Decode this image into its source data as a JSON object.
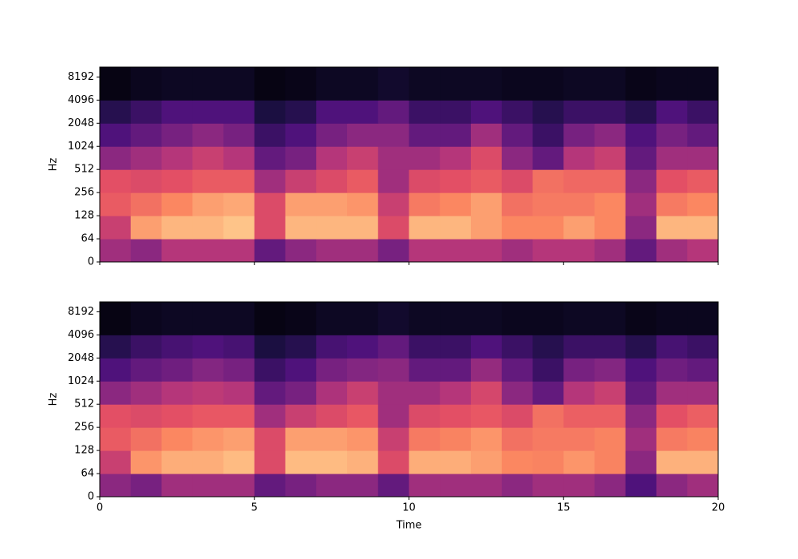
{
  "chart_data": [
    {
      "type": "spectrogram",
      "ylabel": "Hz",
      "colormap": "magma",
      "yscale": "symlog",
      "linthresh": 64,
      "xlim": [
        0,
        20
      ],
      "xticks": [
        0,
        5,
        10,
        15,
        20
      ],
      "show_xticklabels": false,
      "ylim": [
        0,
        11025
      ],
      "yticks": [
        0,
        64,
        128,
        256,
        512,
        1024,
        2048,
        4096,
        8192
      ],
      "time_bins": [
        0,
        1,
        2,
        3,
        4,
        5,
        6,
        7,
        8,
        9,
        10,
        11,
        12,
        13,
        14,
        15,
        16,
        17,
        18,
        19,
        20
      ],
      "freq_bins": [
        0,
        64,
        128,
        256,
        512,
        1024,
        2048,
        4096,
        11025
      ],
      "values": [
        [
          0.45,
          0.4,
          0.5,
          0.5,
          0.5,
          0.3,
          0.4,
          0.45,
          0.45,
          0.35,
          0.5,
          0.5,
          0.5,
          0.45,
          0.5,
          0.5,
          0.45,
          0.3,
          0.45,
          0.5
        ],
        [
          0.55,
          0.8,
          0.85,
          0.85,
          0.88,
          0.6,
          0.85,
          0.85,
          0.85,
          0.6,
          0.85,
          0.85,
          0.8,
          0.75,
          0.75,
          0.8,
          0.75,
          0.4,
          0.85,
          0.85
        ],
        [
          0.65,
          0.7,
          0.75,
          0.8,
          0.82,
          0.6,
          0.8,
          0.8,
          0.78,
          0.55,
          0.72,
          0.75,
          0.8,
          0.7,
          0.72,
          0.72,
          0.75,
          0.45,
          0.72,
          0.75
        ],
        [
          0.62,
          0.6,
          0.62,
          0.65,
          0.65,
          0.45,
          0.55,
          0.6,
          0.65,
          0.45,
          0.6,
          0.62,
          0.65,
          0.6,
          0.7,
          0.68,
          0.68,
          0.4,
          0.62,
          0.65
        ],
        [
          0.4,
          0.45,
          0.5,
          0.55,
          0.5,
          0.3,
          0.35,
          0.5,
          0.55,
          0.45,
          0.45,
          0.5,
          0.6,
          0.4,
          0.3,
          0.5,
          0.55,
          0.3,
          0.45,
          0.45
        ],
        [
          0.25,
          0.3,
          0.35,
          0.4,
          0.35,
          0.2,
          0.25,
          0.35,
          0.4,
          0.4,
          0.3,
          0.3,
          0.45,
          0.3,
          0.2,
          0.35,
          0.4,
          0.25,
          0.35,
          0.3
        ],
        [
          0.15,
          0.2,
          0.25,
          0.25,
          0.25,
          0.12,
          0.15,
          0.25,
          0.25,
          0.3,
          0.2,
          0.2,
          0.25,
          0.2,
          0.15,
          0.2,
          0.2,
          0.15,
          0.25,
          0.2
        ],
        [
          0.03,
          0.05,
          0.06,
          0.06,
          0.06,
          0.03,
          0.04,
          0.06,
          0.06,
          0.08,
          0.06,
          0.06,
          0.06,
          0.05,
          0.05,
          0.06,
          0.06,
          0.04,
          0.05,
          0.05
        ]
      ]
    },
    {
      "type": "spectrogram",
      "ylabel": "Hz",
      "xlabel": "Time",
      "colormap": "magma",
      "yscale": "symlog",
      "linthresh": 64,
      "xlim": [
        0,
        20
      ],
      "xticks": [
        0,
        5,
        10,
        15,
        20
      ],
      "show_xticklabels": true,
      "ylim": [
        0,
        11025
      ],
      "yticks": [
        0,
        64,
        128,
        256,
        512,
        1024,
        2048,
        4096,
        8192
      ],
      "time_bins": [
        0,
        1,
        2,
        3,
        4,
        5,
        6,
        7,
        8,
        9,
        10,
        11,
        12,
        13,
        14,
        15,
        16,
        17,
        18,
        19,
        20
      ],
      "freq_bins": [
        0,
        64,
        128,
        256,
        512,
        1024,
        2048,
        4096,
        11025
      ],
      "values": [
        [
          0.4,
          0.35,
          0.45,
          0.45,
          0.45,
          0.3,
          0.35,
          0.4,
          0.4,
          0.3,
          0.45,
          0.45,
          0.45,
          0.4,
          0.45,
          0.45,
          0.4,
          0.25,
          0.4,
          0.45
        ],
        [
          0.55,
          0.78,
          0.83,
          0.83,
          0.86,
          0.6,
          0.86,
          0.86,
          0.84,
          0.6,
          0.83,
          0.83,
          0.8,
          0.75,
          0.74,
          0.78,
          0.74,
          0.4,
          0.84,
          0.84
        ],
        [
          0.65,
          0.7,
          0.75,
          0.78,
          0.8,
          0.6,
          0.8,
          0.8,
          0.78,
          0.55,
          0.72,
          0.74,
          0.78,
          0.7,
          0.72,
          0.72,
          0.74,
          0.45,
          0.72,
          0.74
        ],
        [
          0.62,
          0.6,
          0.62,
          0.64,
          0.64,
          0.45,
          0.55,
          0.6,
          0.64,
          0.45,
          0.6,
          0.62,
          0.64,
          0.6,
          0.7,
          0.66,
          0.66,
          0.4,
          0.62,
          0.66
        ],
        [
          0.4,
          0.45,
          0.5,
          0.52,
          0.5,
          0.3,
          0.35,
          0.48,
          0.55,
          0.45,
          0.45,
          0.5,
          0.58,
          0.4,
          0.3,
          0.5,
          0.55,
          0.3,
          0.45,
          0.45
        ],
        [
          0.25,
          0.3,
          0.33,
          0.38,
          0.35,
          0.2,
          0.25,
          0.35,
          0.38,
          0.4,
          0.3,
          0.3,
          0.42,
          0.3,
          0.2,
          0.35,
          0.38,
          0.25,
          0.33,
          0.3
        ],
        [
          0.15,
          0.2,
          0.23,
          0.25,
          0.23,
          0.12,
          0.15,
          0.23,
          0.25,
          0.3,
          0.2,
          0.2,
          0.25,
          0.2,
          0.15,
          0.2,
          0.2,
          0.15,
          0.23,
          0.2
        ],
        [
          0.03,
          0.05,
          0.06,
          0.06,
          0.06,
          0.03,
          0.04,
          0.06,
          0.06,
          0.08,
          0.06,
          0.06,
          0.06,
          0.05,
          0.05,
          0.06,
          0.06,
          0.04,
          0.05,
          0.05
        ]
      ]
    }
  ]
}
